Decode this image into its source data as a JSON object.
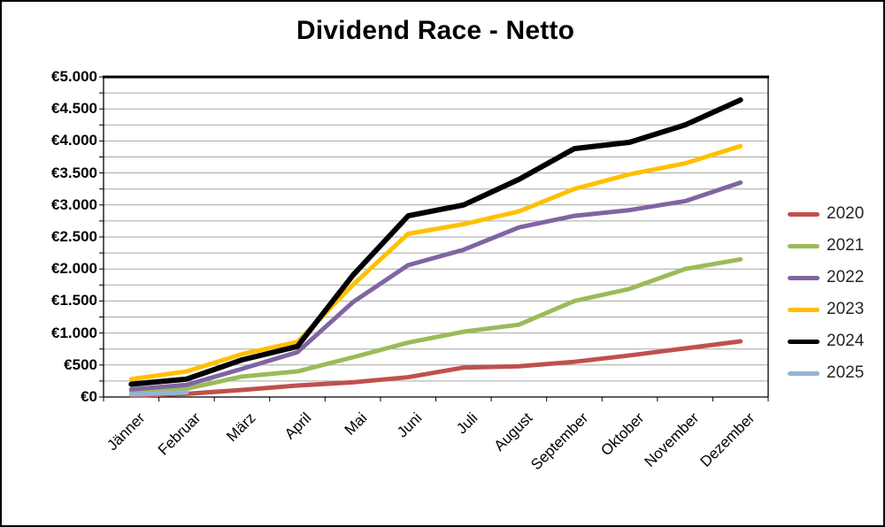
{
  "chart_data": {
    "type": "line",
    "title": "Dividend Race - Netto",
    "categories": [
      "Jänner",
      "Februar",
      "März",
      "April",
      "Mai",
      "Juni",
      "Juli",
      "August",
      "September",
      "Oktober",
      "November",
      "Dezember"
    ],
    "series": [
      {
        "name": "2020",
        "color": "#C0504D",
        "values": [
          20,
          50,
          110,
          180,
          230,
          310,
          460,
          480,
          550,
          650,
          760,
          870
        ]
      },
      {
        "name": "2021",
        "color": "#9BBB59",
        "values": [
          80,
          130,
          320,
          400,
          620,
          850,
          1020,
          1130,
          1500,
          1690,
          2000,
          2150
        ]
      },
      {
        "name": "2022",
        "color": "#8064A2",
        "values": [
          120,
          190,
          440,
          700,
          1480,
          2060,
          2300,
          2650,
          2830,
          2920,
          3060,
          3350
        ]
      },
      {
        "name": "2023",
        "color": "#FFC000",
        "values": [
          280,
          400,
          670,
          860,
          1750,
          2550,
          2700,
          2900,
          3250,
          3480,
          3650,
          3920
        ]
      },
      {
        "name": "2024",
        "color": "#000000",
        "values": [
          200,
          280,
          580,
          790,
          1900,
          2830,
          3000,
          3400,
          3880,
          3980,
          4250,
          4640
        ]
      },
      {
        "name": "2025",
        "color": "#95B3D7",
        "values": [
          40,
          70
        ]
      }
    ],
    "y_axis": {
      "min": 0,
      "max": 5000,
      "minor_step": 250,
      "major_step": 500,
      "major_tick_labels": [
        "€0",
        "€500",
        "€1.000",
        "€1.500",
        "€2.000",
        "€2.500",
        "€3.000",
        "€3.500",
        "€4.000",
        "€4.500",
        "€5.000"
      ]
    },
    "legend_position": "right",
    "grid": true
  },
  "colors": {
    "gridline": "#A6A6A6",
    "axis": "#000000",
    "background": "#FFFFFF"
  }
}
